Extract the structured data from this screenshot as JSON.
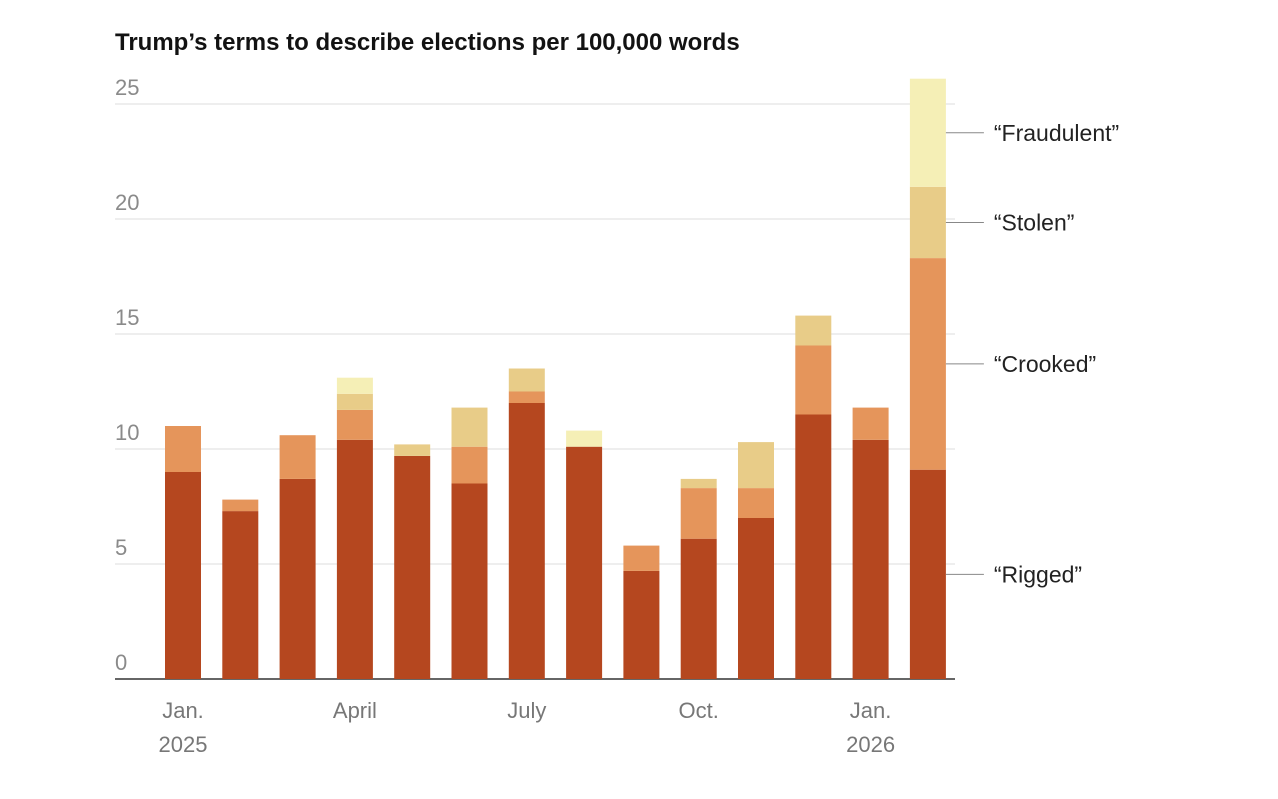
{
  "chart_data": {
    "type": "stacked-bar",
    "title": "Trump’s terms to describe elections per 100,000 words",
    "categories": [
      "Jan. 2025",
      null,
      null,
      "April",
      null,
      null,
      "July",
      null,
      null,
      "Oct.",
      null,
      null,
      "Jan. 2026",
      null
    ],
    "series": [
      {
        "name": "“Rigged”",
        "color": "#b5471f",
        "values": [
          9.0,
          7.3,
          8.7,
          10.4,
          9.7,
          8.5,
          12.0,
          10.1,
          4.7,
          6.1,
          7.0,
          11.5,
          10.4,
          9.1
        ]
      },
      {
        "name": "“Crooked”",
        "color": "#e5955b",
        "values": [
          2.0,
          0.5,
          1.9,
          1.3,
          0,
          1.6,
          0.5,
          0,
          1.1,
          2.2,
          1.3,
          3.0,
          1.4,
          9.2
        ]
      },
      {
        "name": "“Stolen”",
        "color": "#e8cc88",
        "values": [
          0,
          0,
          0,
          0.7,
          0.5,
          1.7,
          1.0,
          0,
          0,
          0.4,
          2.0,
          1.3,
          0,
          3.1
        ]
      },
      {
        "name": "“Fraudulent”",
        "color": "#f5efb6",
        "values": [
          0,
          0,
          0,
          0.7,
          0,
          0,
          0,
          0.7,
          0,
          0,
          0,
          0,
          0,
          4.7
        ]
      }
    ],
    "ylim": [
      0,
      25
    ],
    "yticks": [
      0,
      5,
      10,
      15,
      20,
      25
    ],
    "grid": true
  }
}
